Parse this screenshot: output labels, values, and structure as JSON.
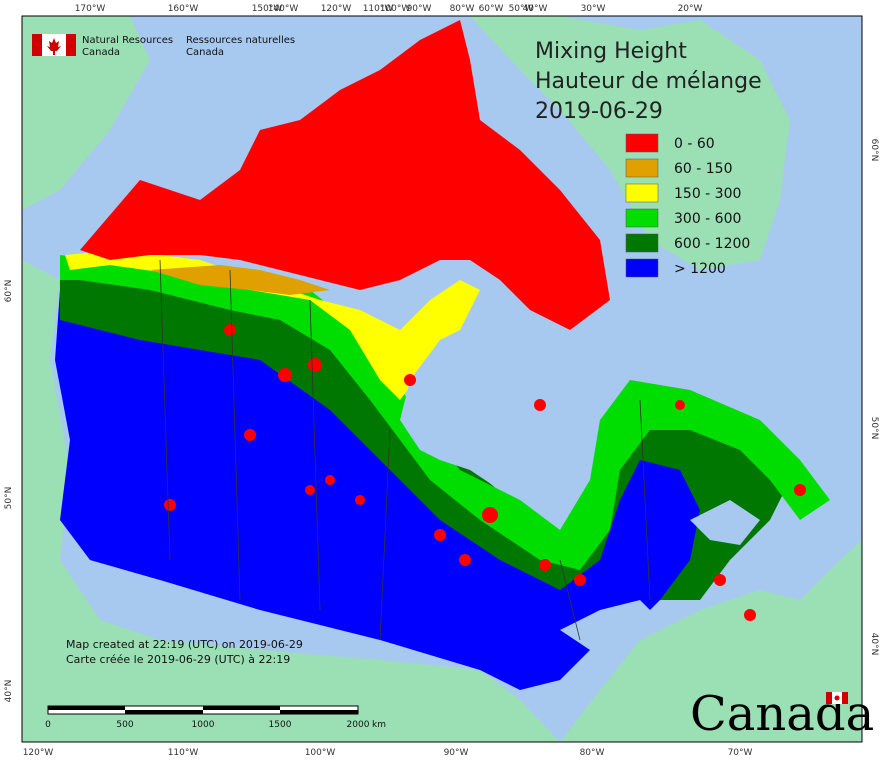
{
  "government": {
    "en_line1": "Natural Resources",
    "en_line2": "Canada",
    "fr_line1": "Ressources naturelles",
    "fr_line2": "Canada",
    "wordmark": "Canada"
  },
  "title": {
    "line1": "Mixing Height",
    "line2": "Hauteur de mélange",
    "date": "2019-06-29"
  },
  "legend": [
    {
      "label": "0 - 60",
      "color": "#ff0000"
    },
    {
      "label": "60 - 150",
      "color": "#e0a000"
    },
    {
      "label": "150 - 300",
      "color": "#ffff00"
    },
    {
      "label": "300 - 600",
      "color": "#00dd00"
    },
    {
      "label": "600 - 1200",
      "color": "#007700"
    },
    {
      "label": "> 1200",
      "color": "#0000ff"
    }
  ],
  "notes": {
    "created_en": "Map created at 22:19 (UTC) on 2019-06-29",
    "created_fr": "Carte créée le 2019-06-29 (UTC) à 22:19"
  },
  "scale_bar": {
    "labels": [
      "0",
      "500",
      "1000",
      "1500",
      "2000"
    ],
    "unit": "km"
  },
  "graticule": {
    "top": [
      "170°W",
      "160°W",
      "150°W",
      "140°W",
      "120°W",
      "110°W",
      "100°W",
      "90°W",
      "80°W",
      "60°W",
      "50°W",
      "40°W",
      "30°W",
      "20°W"
    ],
    "bottom": [
      "120°W",
      "110°W",
      "100°W",
      "90°W",
      "80°W",
      "70°W"
    ],
    "left": [
      "60°N",
      "50°N",
      "40°N"
    ],
    "right": [
      "60°N",
      "50°N",
      "40°N"
    ]
  },
  "colors": {
    "ocean": "#a7c8ef",
    "land": "#9be0b5",
    "frame": "#000000"
  }
}
